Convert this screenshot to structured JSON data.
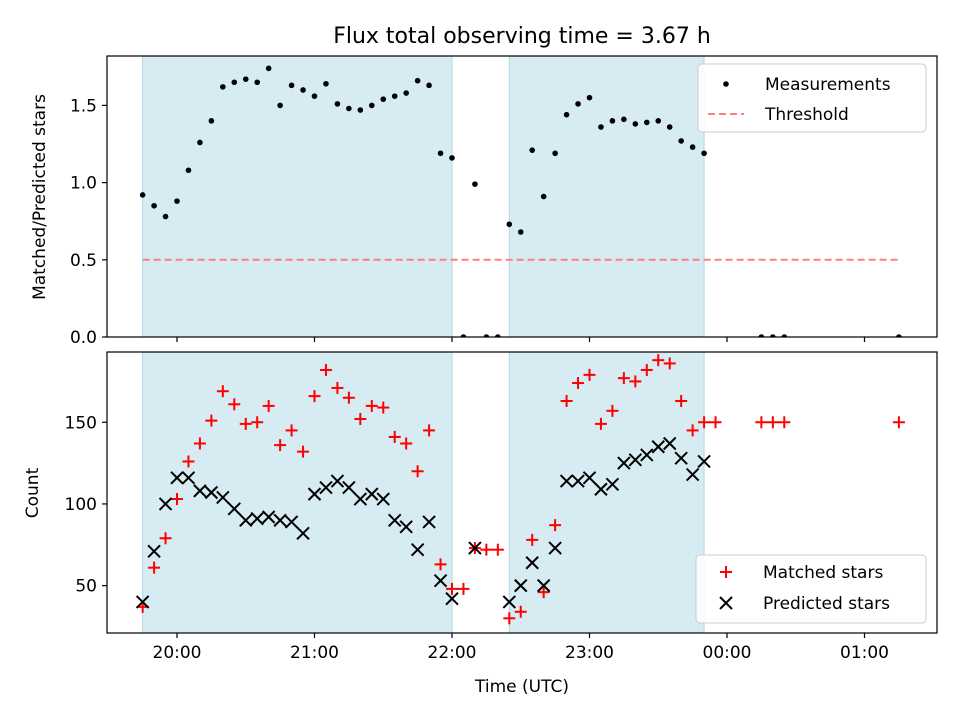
{
  "figure": {
    "title": "Flux total observing time = 3.67 h",
    "xlabel": "Time (UTC)"
  },
  "chart_data": [
    {
      "type": "scatter",
      "title": "Flux total observing time = 3.67 h",
      "ylabel": "Matched/Predicted stars",
      "xlim": [
        "19:37",
        "01:42"
      ],
      "ylim": [
        0,
        1.82
      ],
      "yticks": [
        0.0,
        0.5,
        1.0,
        1.5
      ],
      "grid": false,
      "legend_position": "upper right",
      "shaded_intervals": [
        [
          "19:45",
          "22:00"
        ],
        [
          "22:25",
          "23:50"
        ]
      ],
      "shade_color": "#add8e6",
      "series": [
        {
          "name": "Measurements",
          "kind": "points",
          "color": "#000000",
          "x": [
            "19:45",
            "19:50",
            "19:55",
            "20:00",
            "20:05",
            "20:10",
            "20:15",
            "20:20",
            "20:25",
            "20:30",
            "20:35",
            "20:40",
            "20:45",
            "20:50",
            "20:55",
            "21:00",
            "21:05",
            "21:10",
            "21:15",
            "21:20",
            "21:25",
            "21:30",
            "21:35",
            "21:40",
            "21:45",
            "21:50",
            "21:55",
            "22:00",
            "22:05",
            "22:10",
            "22:15",
            "22:20",
            "22:25",
            "22:30",
            "22:35",
            "22:40",
            "22:45",
            "22:50",
            "22:55",
            "23:00",
            "23:05",
            "23:10",
            "23:15",
            "23:20",
            "23:25",
            "23:30",
            "23:35",
            "23:40",
            "23:45",
            "23:50",
            "00:15",
            "00:20",
            "00:25",
            "01:15"
          ],
          "y": [
            0.92,
            0.85,
            0.78,
            0.88,
            1.08,
            1.26,
            1.4,
            1.62,
            1.65,
            1.67,
            1.65,
            1.74,
            1.5,
            1.63,
            1.6,
            1.56,
            1.64,
            1.51,
            1.48,
            1.47,
            1.5,
            1.54,
            1.56,
            1.58,
            1.66,
            1.63,
            1.19,
            1.16,
            0.0,
            0.99,
            0.0,
            0.0,
            0.73,
            0.68,
            1.21,
            0.91,
            1.19,
            1.44,
            1.51,
            1.55,
            1.36,
            1.4,
            1.41,
            1.38,
            1.39,
            1.4,
            1.36,
            1.27,
            1.23,
            1.19,
            0.0,
            0.0,
            0.0,
            0.0
          ]
        },
        {
          "name": "Threshold",
          "kind": "dashed-line",
          "color": "#ff7f7f",
          "x": [
            "19:45",
            "01:15"
          ],
          "y": [
            0.5,
            0.5
          ]
        }
      ]
    },
    {
      "type": "scatter",
      "ylabel": "Count",
      "xlabel": "Time (UTC)",
      "xlim": [
        "19:37",
        "01:42"
      ],
      "ylim": [
        21,
        193
      ],
      "yticks": [
        50,
        100,
        150
      ],
      "xticks": [
        "20:00",
        "21:00",
        "22:00",
        "23:00",
        "00:00",
        "01:00"
      ],
      "grid": false,
      "legend_position": "lower right",
      "shaded_intervals": [
        [
          "19:45",
          "22:00"
        ],
        [
          "22:25",
          "23:50"
        ]
      ],
      "shade_color": "#add8e6",
      "series": [
        {
          "name": "Matched stars",
          "marker": "+",
          "color": "#ff0000",
          "x": [
            "19:45",
            "19:50",
            "19:55",
            "20:00",
            "20:05",
            "20:10",
            "20:15",
            "20:20",
            "20:25",
            "20:30",
            "20:35",
            "20:40",
            "20:45",
            "20:50",
            "20:55",
            "21:00",
            "21:05",
            "21:10",
            "21:15",
            "21:20",
            "21:25",
            "21:30",
            "21:35",
            "21:40",
            "21:45",
            "21:50",
            "21:55",
            "22:00",
            "22:05",
            "22:10",
            "22:15",
            "22:20",
            "22:25",
            "22:30",
            "22:35",
            "22:40",
            "22:45",
            "22:50",
            "22:55",
            "23:00",
            "23:05",
            "23:10",
            "23:15",
            "23:20",
            "23:25",
            "23:30",
            "23:35",
            "23:40",
            "23:45",
            "23:50",
            "23:55",
            "00:15",
            "00:20",
            "00:25",
            "01:15"
          ],
          "y": [
            37,
            61,
            79,
            103,
            126,
            137,
            151,
            169,
            161,
            149,
            150,
            160,
            136,
            145,
            132,
            166,
            182,
            171,
            165,
            152,
            160,
            159,
            141,
            137,
            120,
            145,
            63,
            48,
            48,
            73,
            72,
            72,
            30,
            34,
            78,
            46,
            87,
            163,
            174,
            179,
            149,
            157,
            177,
            175,
            182,
            188,
            186,
            163,
            145,
            150,
            150,
            150,
            150,
            150,
            150
          ]
        },
        {
          "name": "Predicted stars",
          "marker": "x",
          "color": "#000000",
          "x": [
            "19:45",
            "19:50",
            "19:55",
            "20:00",
            "20:05",
            "20:10",
            "20:15",
            "20:20",
            "20:25",
            "20:30",
            "20:35",
            "20:40",
            "20:45",
            "20:50",
            "20:55",
            "21:00",
            "21:05",
            "21:10",
            "21:15",
            "21:20",
            "21:25",
            "21:30",
            "21:35",
            "21:40",
            "21:45",
            "21:50",
            "21:55",
            "22:00",
            "22:10",
            "22:25",
            "22:30",
            "22:35",
            "22:40",
            "22:45",
            "22:50",
            "22:55",
            "23:00",
            "23:05",
            "23:10",
            "23:15",
            "23:20",
            "23:25",
            "23:30",
            "23:35",
            "23:40",
            "23:45",
            "23:50"
          ],
          "y": [
            40,
            71,
            100,
            116,
            116,
            108,
            107,
            104,
            97,
            90,
            91,
            92,
            90,
            89,
            82,
            106,
            110,
            114,
            110,
            103,
            106,
            103,
            90,
            86,
            72,
            89,
            53,
            42,
            73,
            40,
            50,
            64,
            50,
            73,
            114,
            114,
            116,
            109,
            112,
            125,
            127,
            130,
            135,
            137,
            128,
            118,
            126
          ]
        }
      ]
    }
  ]
}
